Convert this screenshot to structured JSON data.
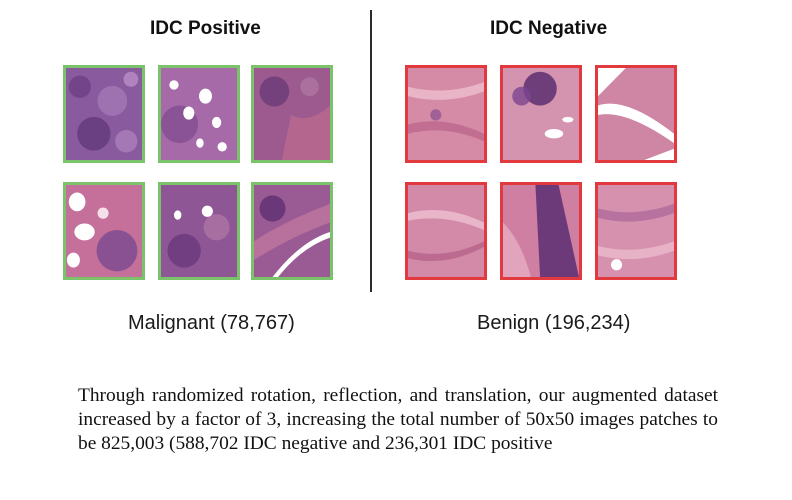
{
  "figure": {
    "positive": {
      "title": "IDC Positive",
      "label": "Malignant (78,767)",
      "border_color": "#7ac36a"
    },
    "negative": {
      "title": "IDC Negative",
      "label": "Benign (196,234)",
      "border_color": "#e2393e"
    }
  },
  "body_text": "Through randomized rotation, reflection, and translation, our augmented dataset increased by a factor of 3, increasing the total number of 50x50 images patches to be 825,003 (588,702 IDC negative and 236,301 IDC positive"
}
